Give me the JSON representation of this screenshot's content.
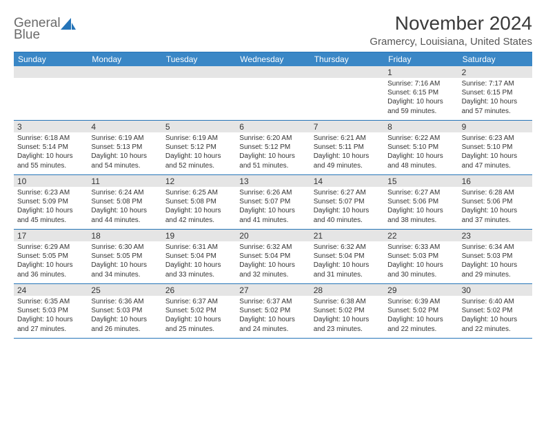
{
  "logo": {
    "line1": "General",
    "line2": "Blue"
  },
  "title": "November 2024",
  "location": "Gramercy, Louisiana, United States",
  "colors": {
    "header_band": "#3a87c6",
    "border": "#2474b8",
    "daynum_bg": "#e5e5e5",
    "text": "#333333",
    "logo_gray": "#6a6a6a"
  },
  "dow": [
    "Sunday",
    "Monday",
    "Tuesday",
    "Wednesday",
    "Thursday",
    "Friday",
    "Saturday"
  ],
  "weeks": [
    [
      {
        "n": "",
        "sr": "",
        "ss": "",
        "dl": ""
      },
      {
        "n": "",
        "sr": "",
        "ss": "",
        "dl": ""
      },
      {
        "n": "",
        "sr": "",
        "ss": "",
        "dl": ""
      },
      {
        "n": "",
        "sr": "",
        "ss": "",
        "dl": ""
      },
      {
        "n": "",
        "sr": "",
        "ss": "",
        "dl": ""
      },
      {
        "n": "1",
        "sr": "Sunrise: 7:16 AM",
        "ss": "Sunset: 6:15 PM",
        "dl": "Daylight: 10 hours and 59 minutes."
      },
      {
        "n": "2",
        "sr": "Sunrise: 7:17 AM",
        "ss": "Sunset: 6:15 PM",
        "dl": "Daylight: 10 hours and 57 minutes."
      }
    ],
    [
      {
        "n": "3",
        "sr": "Sunrise: 6:18 AM",
        "ss": "Sunset: 5:14 PM",
        "dl": "Daylight: 10 hours and 55 minutes."
      },
      {
        "n": "4",
        "sr": "Sunrise: 6:19 AM",
        "ss": "Sunset: 5:13 PM",
        "dl": "Daylight: 10 hours and 54 minutes."
      },
      {
        "n": "5",
        "sr": "Sunrise: 6:19 AM",
        "ss": "Sunset: 5:12 PM",
        "dl": "Daylight: 10 hours and 52 minutes."
      },
      {
        "n": "6",
        "sr": "Sunrise: 6:20 AM",
        "ss": "Sunset: 5:12 PM",
        "dl": "Daylight: 10 hours and 51 minutes."
      },
      {
        "n": "7",
        "sr": "Sunrise: 6:21 AM",
        "ss": "Sunset: 5:11 PM",
        "dl": "Daylight: 10 hours and 49 minutes."
      },
      {
        "n": "8",
        "sr": "Sunrise: 6:22 AM",
        "ss": "Sunset: 5:10 PM",
        "dl": "Daylight: 10 hours and 48 minutes."
      },
      {
        "n": "9",
        "sr": "Sunrise: 6:23 AM",
        "ss": "Sunset: 5:10 PM",
        "dl": "Daylight: 10 hours and 47 minutes."
      }
    ],
    [
      {
        "n": "10",
        "sr": "Sunrise: 6:23 AM",
        "ss": "Sunset: 5:09 PM",
        "dl": "Daylight: 10 hours and 45 minutes."
      },
      {
        "n": "11",
        "sr": "Sunrise: 6:24 AM",
        "ss": "Sunset: 5:08 PM",
        "dl": "Daylight: 10 hours and 44 minutes."
      },
      {
        "n": "12",
        "sr": "Sunrise: 6:25 AM",
        "ss": "Sunset: 5:08 PM",
        "dl": "Daylight: 10 hours and 42 minutes."
      },
      {
        "n": "13",
        "sr": "Sunrise: 6:26 AM",
        "ss": "Sunset: 5:07 PM",
        "dl": "Daylight: 10 hours and 41 minutes."
      },
      {
        "n": "14",
        "sr": "Sunrise: 6:27 AM",
        "ss": "Sunset: 5:07 PM",
        "dl": "Daylight: 10 hours and 40 minutes."
      },
      {
        "n": "15",
        "sr": "Sunrise: 6:27 AM",
        "ss": "Sunset: 5:06 PM",
        "dl": "Daylight: 10 hours and 38 minutes."
      },
      {
        "n": "16",
        "sr": "Sunrise: 6:28 AM",
        "ss": "Sunset: 5:06 PM",
        "dl": "Daylight: 10 hours and 37 minutes."
      }
    ],
    [
      {
        "n": "17",
        "sr": "Sunrise: 6:29 AM",
        "ss": "Sunset: 5:05 PM",
        "dl": "Daylight: 10 hours and 36 minutes."
      },
      {
        "n": "18",
        "sr": "Sunrise: 6:30 AM",
        "ss": "Sunset: 5:05 PM",
        "dl": "Daylight: 10 hours and 34 minutes."
      },
      {
        "n": "19",
        "sr": "Sunrise: 6:31 AM",
        "ss": "Sunset: 5:04 PM",
        "dl": "Daylight: 10 hours and 33 minutes."
      },
      {
        "n": "20",
        "sr": "Sunrise: 6:32 AM",
        "ss": "Sunset: 5:04 PM",
        "dl": "Daylight: 10 hours and 32 minutes."
      },
      {
        "n": "21",
        "sr": "Sunrise: 6:32 AM",
        "ss": "Sunset: 5:04 PM",
        "dl": "Daylight: 10 hours and 31 minutes."
      },
      {
        "n": "22",
        "sr": "Sunrise: 6:33 AM",
        "ss": "Sunset: 5:03 PM",
        "dl": "Daylight: 10 hours and 30 minutes."
      },
      {
        "n": "23",
        "sr": "Sunrise: 6:34 AM",
        "ss": "Sunset: 5:03 PM",
        "dl": "Daylight: 10 hours and 29 minutes."
      }
    ],
    [
      {
        "n": "24",
        "sr": "Sunrise: 6:35 AM",
        "ss": "Sunset: 5:03 PM",
        "dl": "Daylight: 10 hours and 27 minutes."
      },
      {
        "n": "25",
        "sr": "Sunrise: 6:36 AM",
        "ss": "Sunset: 5:03 PM",
        "dl": "Daylight: 10 hours and 26 minutes."
      },
      {
        "n": "26",
        "sr": "Sunrise: 6:37 AM",
        "ss": "Sunset: 5:02 PM",
        "dl": "Daylight: 10 hours and 25 minutes."
      },
      {
        "n": "27",
        "sr": "Sunrise: 6:37 AM",
        "ss": "Sunset: 5:02 PM",
        "dl": "Daylight: 10 hours and 24 minutes."
      },
      {
        "n": "28",
        "sr": "Sunrise: 6:38 AM",
        "ss": "Sunset: 5:02 PM",
        "dl": "Daylight: 10 hours and 23 minutes."
      },
      {
        "n": "29",
        "sr": "Sunrise: 6:39 AM",
        "ss": "Sunset: 5:02 PM",
        "dl": "Daylight: 10 hours and 22 minutes."
      },
      {
        "n": "30",
        "sr": "Sunrise: 6:40 AM",
        "ss": "Sunset: 5:02 PM",
        "dl": "Daylight: 10 hours and 22 minutes."
      }
    ]
  ]
}
